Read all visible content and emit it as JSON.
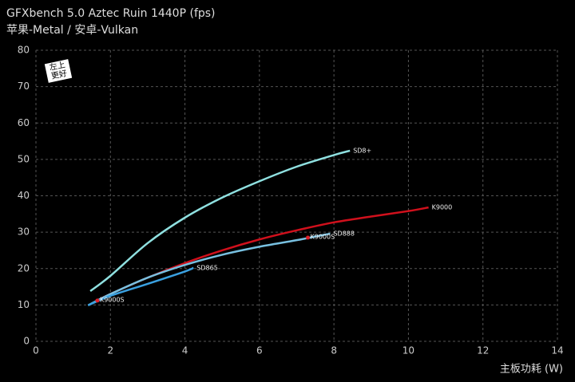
{
  "chart_data": {
    "type": "line",
    "title": "GFXbench 5.0 Aztec Ruin 1440P (fps)",
    "subtitle": "苹果-Metal / 安卓-Vulkan",
    "x_label": "主板功耗 (W)",
    "annotation": "左上更好",
    "xlim": [
      0,
      14
    ],
    "xticks": [
      0,
      2,
      4,
      6,
      8,
      10,
      12,
      14
    ],
    "ylim": [
      0,
      80
    ],
    "yticks": [
      0,
      10,
      20,
      30,
      40,
      50,
      60,
      70,
      80
    ],
    "grid": true,
    "series": [
      {
        "name": "SD8+",
        "color": "#8fe0e0",
        "x": [
          1.46,
          2,
          3,
          4,
          5,
          6,
          7,
          8,
          8.43
        ],
        "values": [
          13.8,
          18,
          27,
          34,
          39.5,
          44,
          48,
          51.2,
          52.4
        ]
      },
      {
        "name": "K9000",
        "color": "#d0101c",
        "x": [
          1.6,
          2,
          3,
          4,
          5,
          6,
          7,
          8,
          9,
          10,
          10.54
        ],
        "values": [
          11,
          13,
          17.5,
          21.5,
          25,
          28,
          30.5,
          32.7,
          34.3,
          35.8,
          36.8
        ]
      },
      {
        "name": "SD888",
        "color": "#78c0e0",
        "x": [
          1.4,
          2,
          3,
          4,
          5,
          6,
          7,
          7.9
        ],
        "values": [
          9.9,
          13,
          17.5,
          21,
          23.8,
          26,
          27.8,
          29.6
        ]
      },
      {
        "name": "SD865",
        "color": "#3aa0e0",
        "x": [
          1.4,
          2,
          3,
          4,
          4.23
        ],
        "values": [
          9.9,
          12.5,
          15.8,
          19.2,
          20.2
        ]
      },
      {
        "name": "K9000S",
        "color": "#e0202a",
        "mode": "markers",
        "x": [
          1.65,
          7.3
        ],
        "values": [
          11.2,
          28.5
        ]
      }
    ]
  }
}
